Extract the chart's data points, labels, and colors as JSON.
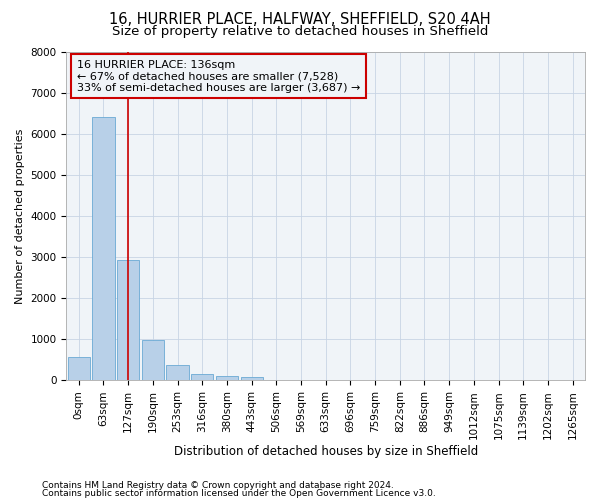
{
  "title1": "16, HURRIER PLACE, HALFWAY, SHEFFIELD, S20 4AH",
  "title2": "Size of property relative to detached houses in Sheffield",
  "xlabel": "Distribution of detached houses by size in Sheffield",
  "ylabel": "Number of detached properties",
  "bar_categories": [
    "0sqm",
    "63sqm",
    "127sqm",
    "190sqm",
    "253sqm",
    "316sqm",
    "380sqm",
    "443sqm",
    "506sqm",
    "569sqm",
    "633sqm",
    "696sqm",
    "759sqm",
    "822sqm",
    "886sqm",
    "949sqm",
    "1012sqm",
    "1075sqm",
    "1139sqm",
    "1202sqm",
    "1265sqm"
  ],
  "bar_values": [
    570,
    6400,
    2920,
    990,
    380,
    160,
    110,
    80,
    0,
    0,
    0,
    0,
    0,
    0,
    0,
    0,
    0,
    0,
    0,
    0,
    0
  ],
  "bar_color": "#b8d0e8",
  "bar_edge_color": "#6aaad4",
  "vline_color": "#cc0000",
  "annotation_line1": "16 HURRIER PLACE: 136sqm",
  "annotation_line2": "← 67% of detached houses are smaller (7,528)",
  "annotation_line3": "33% of semi-detached houses are larger (3,687) →",
  "annotation_box_color": "#cc0000",
  "ylim": [
    0,
    8000
  ],
  "yticks": [
    0,
    1000,
    2000,
    3000,
    4000,
    5000,
    6000,
    7000,
    8000
  ],
  "grid_color": "#c8d4e4",
  "background_color": "#ffffff",
  "plot_bg_color": "#f0f4f8",
  "footer_line1": "Contains HM Land Registry data © Crown copyright and database right 2024.",
  "footer_line2": "Contains public sector information licensed under the Open Government Licence v3.0.",
  "title1_fontsize": 10.5,
  "title2_fontsize": 9.5,
  "xlabel_fontsize": 8.5,
  "ylabel_fontsize": 8,
  "tick_fontsize": 7.5,
  "annotation_fontsize": 8,
  "footer_fontsize": 6.5
}
